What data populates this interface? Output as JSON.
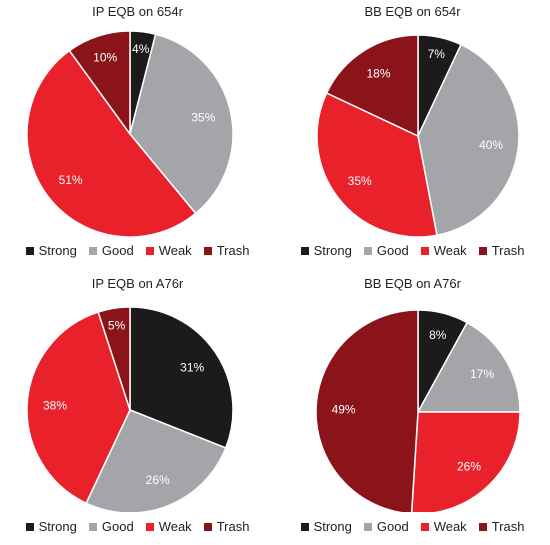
{
  "categories": [
    "Strong",
    "Good",
    "Weak",
    "Trash"
  ],
  "colors": {
    "Strong": "#1c1a1b",
    "Good": "#a4a5a8",
    "Weak": "#e8212b",
    "Trash": "#8b141b"
  },
  "chart_data": [
    {
      "type": "pie",
      "title": "IP EQB on 654r",
      "labels": [
        "Strong",
        "Good",
        "Weak",
        "Trash"
      ],
      "values": [
        4,
        35,
        51,
        10
      ],
      "data_labels": [
        "4%",
        "35%",
        "51%",
        "10%"
      ],
      "legend": "bottom"
    },
    {
      "type": "pie",
      "title": "BB  EQB on 654r",
      "labels": [
        "Strong",
        "Good",
        "Weak",
        "Trash"
      ],
      "values": [
        7,
        40,
        35,
        18
      ],
      "data_labels": [
        "7%",
        "40%",
        "35%",
        "18%"
      ],
      "legend": "bottom"
    },
    {
      "type": "pie",
      "title": "IP EQB on A76r",
      "labels": [
        "Strong",
        "Good",
        "Weak",
        "Trash"
      ],
      "values": [
        31,
        26,
        38,
        5
      ],
      "data_labels": [
        "31%",
        "26%",
        "38%",
        "5%"
      ],
      "legend": "bottom"
    },
    {
      "type": "pie",
      "title": "BB EQB on A76r",
      "labels": [
        "Strong",
        "Good",
        "Weak",
        "Trash"
      ],
      "values": [
        8,
        17,
        26,
        49
      ],
      "data_labels": [
        "8%",
        "17%",
        "26%",
        "49%"
      ],
      "legend": "bottom"
    }
  ]
}
